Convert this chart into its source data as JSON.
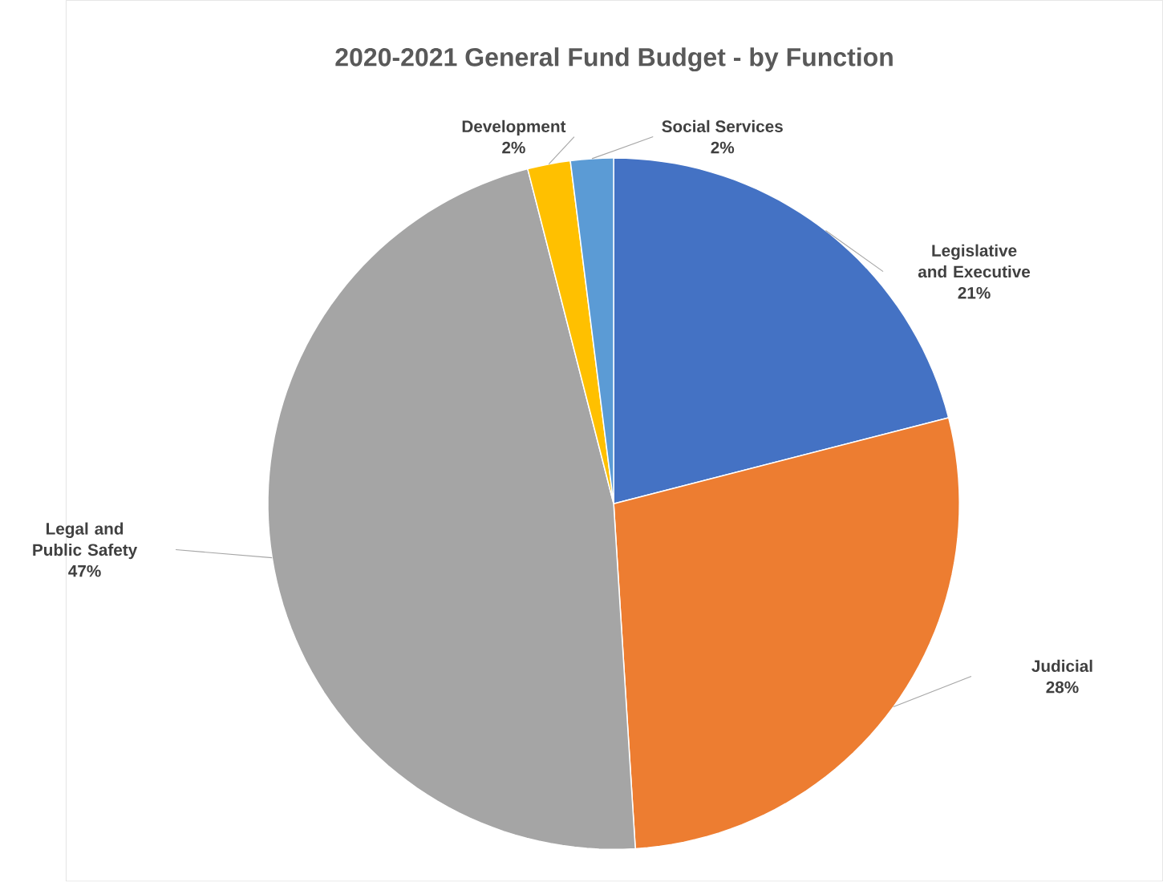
{
  "chart_data": {
    "type": "pie",
    "title": "2020-2021 General Fund Budget - by Function",
    "categories": [
      "Legislative and Executive",
      "Judicial",
      "Legal and Public Safety",
      "Development",
      "Social Services"
    ],
    "values": [
      21,
      28,
      47,
      2,
      2
    ],
    "value_labels": [
      "21%",
      "28%",
      "47%",
      "2%",
      "2%"
    ],
    "colors": [
      "#4472c4",
      "#ed7d31",
      "#a5a5a5",
      "#ffc000",
      "#5b9bd5"
    ]
  }
}
